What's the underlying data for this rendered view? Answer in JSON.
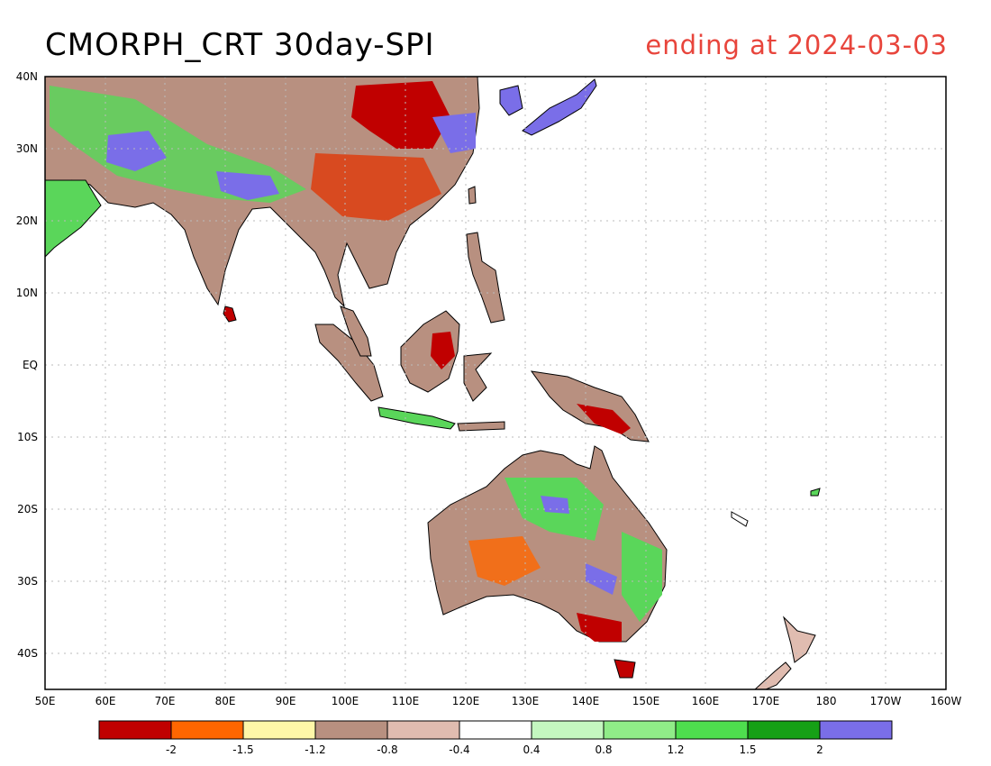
{
  "header": {
    "title": "CMORPH_CRT 30day-SPI",
    "subtitle": "ending at 2024-03-03"
  },
  "map": {
    "lat_labels": [
      "40N",
      "30N",
      "20N",
      "10N",
      "EQ",
      "10S",
      "20S",
      "30S",
      "40S"
    ],
    "lon_labels": [
      "50E",
      "60E",
      "70E",
      "80E",
      "90E",
      "100E",
      "110E",
      "120E",
      "130E",
      "140E",
      "150E",
      "160E",
      "170E",
      "180",
      "170W",
      "160W"
    ],
    "colors": {
      "land_drought_severe": "#c00000",
      "land_drought_moderate": "#b89080",
      "land_wet": "#5ad65a",
      "land_very_wet": "#7a6ee8",
      "coastline": "#000000"
    }
  },
  "legend": {
    "colors": [
      "#c00000",
      "#ff6600",
      "#fff7a8",
      "#b89080",
      "#e0bcb0",
      "#ffffff",
      "#c4f7c0",
      "#90ec88",
      "#4ede4e",
      "#16a016",
      "#7a6ee8"
    ],
    "labels": [
      "-2",
      "-1.5",
      "-1.2",
      "-0.8",
      "-0.4",
      "0.4",
      "0.8",
      "1.2",
      "1.5",
      "2"
    ]
  }
}
